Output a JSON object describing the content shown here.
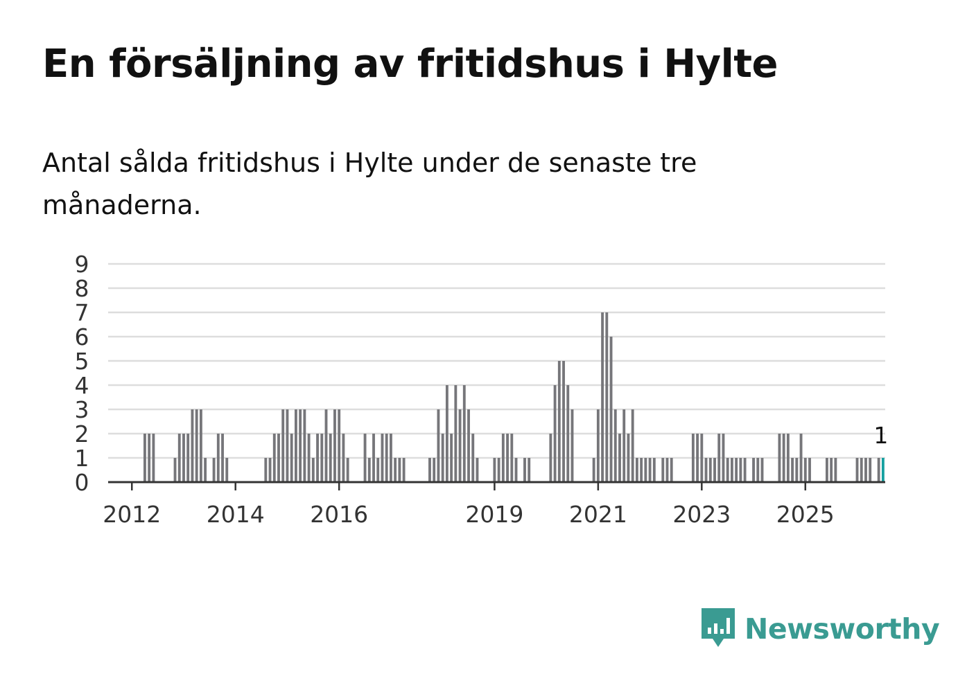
{
  "title": "En försäljning av fritidshus i Hylte",
  "subtitle": "Antal sålda fritidshus i Hylte under de senaste tre månaderna.",
  "colors": {
    "bar": "#76767a",
    "highlight": "#15a0a0",
    "grid": "#dddddd",
    "axis": "#333333",
    "brand": "#3a9b92"
  },
  "logo": {
    "text": "Newsworthy",
    "icon": "bar-chart-speech-bubble-icon"
  },
  "chart_data": {
    "type": "bar",
    "title": "En försäljning av fritidshus i Hylte",
    "xlabel": "",
    "ylabel": "",
    "ylim": [
      0,
      9
    ],
    "y_ticks": [
      "0",
      "1",
      "2",
      "3",
      "4",
      "5",
      "6",
      "7",
      "8",
      "9"
    ],
    "x_ticks": [
      "2012",
      "2014",
      "2016",
      "2019",
      "2021",
      "2023",
      "2025"
    ],
    "grid": true,
    "x_start": "2011-08",
    "highlight_last": true,
    "last_value_label": "1",
    "values": [
      0,
      0,
      0,
      0,
      0,
      0,
      0,
      0,
      2,
      2,
      2,
      0,
      0,
      0,
      0,
      1,
      2,
      2,
      2,
      3,
      3,
      3,
      1,
      0,
      1,
      2,
      2,
      1,
      0,
      0,
      0,
      0,
      0,
      0,
      0,
      0,
      1,
      1,
      2,
      2,
      3,
      3,
      2,
      3,
      3,
      3,
      2,
      1,
      2,
      2,
      3,
      2,
      3,
      3,
      2,
      1,
      0,
      0,
      0,
      2,
      1,
      2,
      1,
      2,
      2,
      2,
      1,
      1,
      1,
      0,
      0,
      0,
      0,
      0,
      1,
      1,
      3,
      2,
      4,
      2,
      4,
      3,
      4,
      3,
      2,
      1,
      0,
      0,
      0,
      1,
      1,
      2,
      2,
      2,
      1,
      0,
      1,
      1,
      0,
      0,
      0,
      0,
      2,
      4,
      5,
      5,
      4,
      3,
      0,
      0,
      0,
      0,
      1,
      3,
      7,
      7,
      6,
      3,
      2,
      3,
      2,
      3,
      1,
      1,
      1,
      1,
      1,
      0,
      1,
      1,
      1,
      0,
      0,
      0,
      0,
      2,
      2,
      2,
      1,
      1,
      1,
      2,
      2,
      1,
      1,
      1,
      1,
      1,
      0,
      1,
      1,
      1,
      0,
      0,
      0,
      2,
      2,
      2,
      1,
      1,
      2,
      1,
      1,
      0,
      0,
      0,
      1,
      1,
      1,
      0,
      0,
      0,
      0,
      1,
      1,
      1,
      1,
      0,
      1,
      1
    ]
  }
}
